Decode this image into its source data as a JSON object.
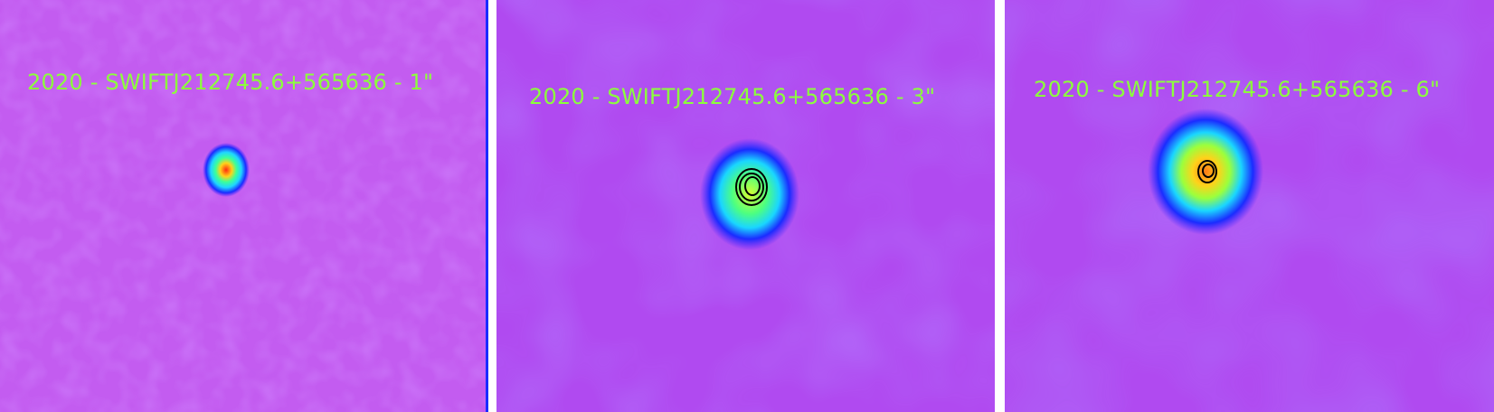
{
  "panels": [
    {
      "label": "2020 - SWIFTJ212745.6+565636 - 1\""
    },
    {
      "label": "2020 - SWIFTJ212745.6+565636 - 3\""
    },
    {
      "label": "2020 - SWIFTJ212745.6+565636 - 6\""
    }
  ],
  "colors": {
    "background_field": "#b04af0",
    "label_text": "#8cff3c",
    "source_core": "#ff3a1c",
    "contour": "#000000",
    "divider": "#ffffff"
  },
  "source": "SWIFTJ212745.6+565636"
}
